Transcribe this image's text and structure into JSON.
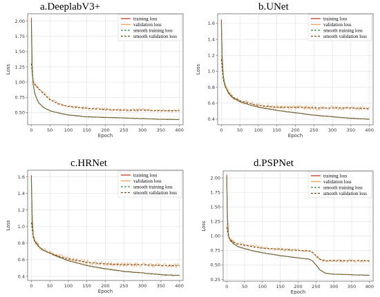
{
  "chart_data": [
    {
      "type": "line",
      "title": "a.DeeplabV3+",
      "xlabel": "Epoch",
      "ylabel": "Loss",
      "xlim": [
        -10,
        410
      ],
      "ylim": [
        0.3,
        2.12
      ],
      "xticks": [
        0,
        50,
        100,
        150,
        200,
        250,
        300,
        350,
        400
      ],
      "yticks": [
        0.5,
        0.75,
        1.0,
        1.25,
        1.5,
        1.75,
        2.0
      ],
      "ytick_labels": [
        "0.50",
        "0.75",
        "1.00",
        "1.25",
        "1.50",
        "1.75",
        "2.00"
      ],
      "grid": true,
      "legend_position": "top-right",
      "legend": [
        "training loss",
        "validation loss",
        "smooth training loss",
        "smooth validation loss"
      ],
      "series": [
        {
          "name": "training loss",
          "color": "#c0392b",
          "x": [
            0,
            2,
            5,
            10,
            15,
            20,
            30,
            40,
            50,
            75,
            100,
            150,
            200,
            250,
            300,
            350,
            400
          ],
          "y": [
            2.05,
            1.3,
            0.95,
            0.8,
            0.72,
            0.66,
            0.6,
            0.56,
            0.53,
            0.49,
            0.46,
            0.43,
            0.42,
            0.41,
            0.4,
            0.39,
            0.385
          ]
        },
        {
          "name": "validation loss",
          "color": "#e8a060",
          "x": [
            0,
            5,
            10,
            20,
            30,
            40,
            50,
            75,
            100,
            150,
            200,
            250,
            300,
            350,
            400
          ],
          "y": [
            1.35,
            1.02,
            0.96,
            0.9,
            0.84,
            0.78,
            0.72,
            0.64,
            0.6,
            0.57,
            0.55,
            0.54,
            0.54,
            0.53,
            0.53
          ]
        },
        {
          "name": "smooth training loss",
          "color": "#2e8b3a",
          "x": [
            0,
            2,
            5,
            10,
            15,
            20,
            30,
            40,
            50,
            75,
            100,
            150,
            200,
            250,
            300,
            350,
            400
          ],
          "y": [
            2.0,
            1.3,
            0.95,
            0.8,
            0.72,
            0.66,
            0.6,
            0.56,
            0.53,
            0.49,
            0.46,
            0.43,
            0.42,
            0.41,
            0.4,
            0.39,
            0.385
          ]
        },
        {
          "name": "smooth validation loss",
          "color": "#6b4a1a",
          "x": [
            0,
            5,
            10,
            20,
            30,
            40,
            50,
            75,
            100,
            150,
            200,
            250,
            300,
            350,
            400
          ],
          "y": [
            1.3,
            1.0,
            0.95,
            0.89,
            0.83,
            0.77,
            0.71,
            0.64,
            0.6,
            0.57,
            0.55,
            0.54,
            0.54,
            0.53,
            0.53
          ]
        }
      ]
    },
    {
      "type": "line",
      "title": "b.UNet",
      "xlabel": "Epoch",
      "ylabel": "Loss",
      "xlim": [
        -10,
        410
      ],
      "ylim": [
        0.33,
        1.72
      ],
      "xticks": [
        0,
        50,
        100,
        150,
        200,
        250,
        300,
        350,
        400
      ],
      "yticks": [
        0.4,
        0.6,
        0.8,
        1.0,
        1.2,
        1.4,
        1.6
      ],
      "ytick_labels": [
        "0.4",
        "0.6",
        "0.8",
        "1.0",
        "1.2",
        "1.4",
        "1.6"
      ],
      "grid": true,
      "legend_position": "top-right",
      "legend": [
        "training loss",
        "validation loss",
        "smooth training loss",
        "smooth validation loss"
      ],
      "series": [
        {
          "name": "training loss",
          "color": "#c0392b",
          "x": [
            0,
            2,
            5,
            10,
            20,
            30,
            50,
            75,
            100,
            150,
            200,
            250,
            300,
            350,
            400
          ],
          "y": [
            1.65,
            1.2,
            0.95,
            0.82,
            0.72,
            0.67,
            0.62,
            0.58,
            0.55,
            0.51,
            0.48,
            0.45,
            0.43,
            0.41,
            0.4
          ]
        },
        {
          "name": "validation loss",
          "color": "#e8a060",
          "x": [
            0,
            5,
            10,
            20,
            30,
            50,
            75,
            100,
            150,
            200,
            250,
            300,
            350,
            400
          ],
          "y": [
            1.2,
            0.92,
            0.82,
            0.74,
            0.68,
            0.63,
            0.6,
            0.57,
            0.55,
            0.55,
            0.54,
            0.54,
            0.54,
            0.53
          ]
        },
        {
          "name": "smooth training loss",
          "color": "#2e8b3a",
          "x": [
            0,
            2,
            5,
            10,
            20,
            30,
            50,
            75,
            100,
            150,
            200,
            250,
            300,
            350,
            400
          ],
          "y": [
            1.6,
            1.2,
            0.95,
            0.82,
            0.72,
            0.67,
            0.62,
            0.58,
            0.55,
            0.51,
            0.48,
            0.45,
            0.43,
            0.41,
            0.4
          ]
        },
        {
          "name": "smooth validation loss",
          "color": "#6b4a1a",
          "x": [
            0,
            5,
            10,
            20,
            30,
            50,
            75,
            100,
            150,
            200,
            250,
            300,
            350,
            400
          ],
          "y": [
            1.15,
            0.9,
            0.81,
            0.73,
            0.68,
            0.63,
            0.6,
            0.57,
            0.55,
            0.55,
            0.54,
            0.54,
            0.54,
            0.53
          ]
        }
      ]
    },
    {
      "type": "line",
      "title": "c.HRNet",
      "xlabel": "Epoch",
      "ylabel": "Loss",
      "xlim": [
        -10,
        410
      ],
      "ylim": [
        0.35,
        1.68
      ],
      "xticks": [
        0,
        50,
        100,
        150,
        200,
        250,
        300,
        350,
        400
      ],
      "yticks": [
        0.4,
        0.6,
        0.8,
        1.0,
        1.2,
        1.4,
        1.6
      ],
      "ytick_labels": [
        "0.4",
        "0.6",
        "0.8",
        "1.0",
        "1.2",
        "1.4",
        "1.6"
      ],
      "grid": true,
      "legend_position": "top-right",
      "legend": [
        "training loss",
        "validation loss",
        "smooth training loss",
        "smooth validation loss"
      ],
      "series": [
        {
          "name": "training loss",
          "color": "#c0392b",
          "x": [
            0,
            2,
            5,
            10,
            20,
            30,
            50,
            75,
            100,
            150,
            200,
            250,
            300,
            350,
            400
          ],
          "y": [
            1.62,
            1.15,
            0.9,
            0.82,
            0.76,
            0.72,
            0.68,
            0.63,
            0.59,
            0.53,
            0.49,
            0.46,
            0.44,
            0.42,
            0.41
          ]
        },
        {
          "name": "validation loss",
          "color": "#e8a060",
          "x": [
            0,
            5,
            10,
            20,
            30,
            50,
            75,
            100,
            150,
            200,
            250,
            300,
            350,
            400
          ],
          "y": [
            1.1,
            0.88,
            0.82,
            0.77,
            0.73,
            0.69,
            0.65,
            0.61,
            0.57,
            0.55,
            0.54,
            0.54,
            0.53,
            0.53
          ]
        },
        {
          "name": "smooth training loss",
          "color": "#2e8b3a",
          "x": [
            0,
            2,
            5,
            10,
            20,
            30,
            50,
            75,
            100,
            150,
            200,
            250,
            300,
            350,
            400
          ],
          "y": [
            1.58,
            1.15,
            0.9,
            0.82,
            0.76,
            0.72,
            0.68,
            0.63,
            0.59,
            0.53,
            0.49,
            0.46,
            0.44,
            0.42,
            0.41
          ]
        },
        {
          "name": "smooth validation loss",
          "color": "#6b4a1a",
          "x": [
            0,
            5,
            10,
            20,
            30,
            50,
            75,
            100,
            150,
            200,
            250,
            300,
            350,
            400
          ],
          "y": [
            1.05,
            0.87,
            0.81,
            0.76,
            0.72,
            0.68,
            0.64,
            0.61,
            0.57,
            0.55,
            0.54,
            0.54,
            0.53,
            0.53
          ]
        }
      ]
    },
    {
      "type": "line",
      "title": "d.PSPNet",
      "xlabel": "Epoch",
      "ylabel": "Loss",
      "xlim": [
        -10,
        410
      ],
      "ylim": [
        0.22,
        2.12
      ],
      "xticks": [
        0,
        50,
        100,
        150,
        200,
        250,
        300,
        350,
        400
      ],
      "yticks": [
        0.25,
        0.5,
        0.75,
        1.0,
        1.25,
        1.5,
        1.75,
        2.0
      ],
      "ytick_labels": [
        "0.25",
        "0.50",
        "0.75",
        "1.00",
        "1.25",
        "1.50",
        "1.75",
        "2.00"
      ],
      "grid": true,
      "legend_position": "top-right",
      "legend": [
        "training loss",
        "validation loss",
        "smooth training loss",
        "smooth validation loss"
      ],
      "series": [
        {
          "name": "training loss",
          "color": "#c0392b",
          "x": [
            0,
            2,
            5,
            10,
            20,
            30,
            50,
            75,
            100,
            150,
            200,
            230,
            240,
            250,
            260,
            275,
            300,
            350,
            400
          ],
          "y": [
            2.05,
            1.3,
            1.0,
            0.92,
            0.86,
            0.82,
            0.78,
            0.74,
            0.71,
            0.66,
            0.62,
            0.6,
            0.57,
            0.5,
            0.42,
            0.36,
            0.34,
            0.33,
            0.32
          ]
        },
        {
          "name": "validation loss",
          "color": "#e8a060",
          "x": [
            0,
            5,
            10,
            20,
            30,
            50,
            75,
            100,
            150,
            200,
            230,
            240,
            250,
            260,
            275,
            300,
            350,
            400
          ],
          "y": [
            1.2,
            1.0,
            0.94,
            0.9,
            0.87,
            0.85,
            0.82,
            0.8,
            0.77,
            0.75,
            0.74,
            0.72,
            0.66,
            0.6,
            0.57,
            0.57,
            0.57,
            0.57
          ]
        },
        {
          "name": "smooth training loss",
          "color": "#2e8b3a",
          "x": [
            0,
            2,
            5,
            10,
            20,
            30,
            50,
            75,
            100,
            150,
            200,
            230,
            240,
            250,
            260,
            275,
            300,
            350,
            400
          ],
          "y": [
            2.0,
            1.3,
            1.0,
            0.92,
            0.86,
            0.82,
            0.78,
            0.74,
            0.71,
            0.66,
            0.62,
            0.6,
            0.57,
            0.5,
            0.42,
            0.36,
            0.34,
            0.33,
            0.32
          ]
        },
        {
          "name": "smooth validation loss",
          "color": "#6b4a1a",
          "x": [
            0,
            5,
            10,
            20,
            30,
            50,
            75,
            100,
            150,
            200,
            230,
            240,
            250,
            260,
            275,
            300,
            350,
            400
          ],
          "y": [
            1.15,
            0.98,
            0.93,
            0.89,
            0.86,
            0.84,
            0.81,
            0.79,
            0.77,
            0.75,
            0.74,
            0.72,
            0.66,
            0.6,
            0.57,
            0.57,
            0.57,
            0.57
          ]
        }
      ]
    }
  ]
}
